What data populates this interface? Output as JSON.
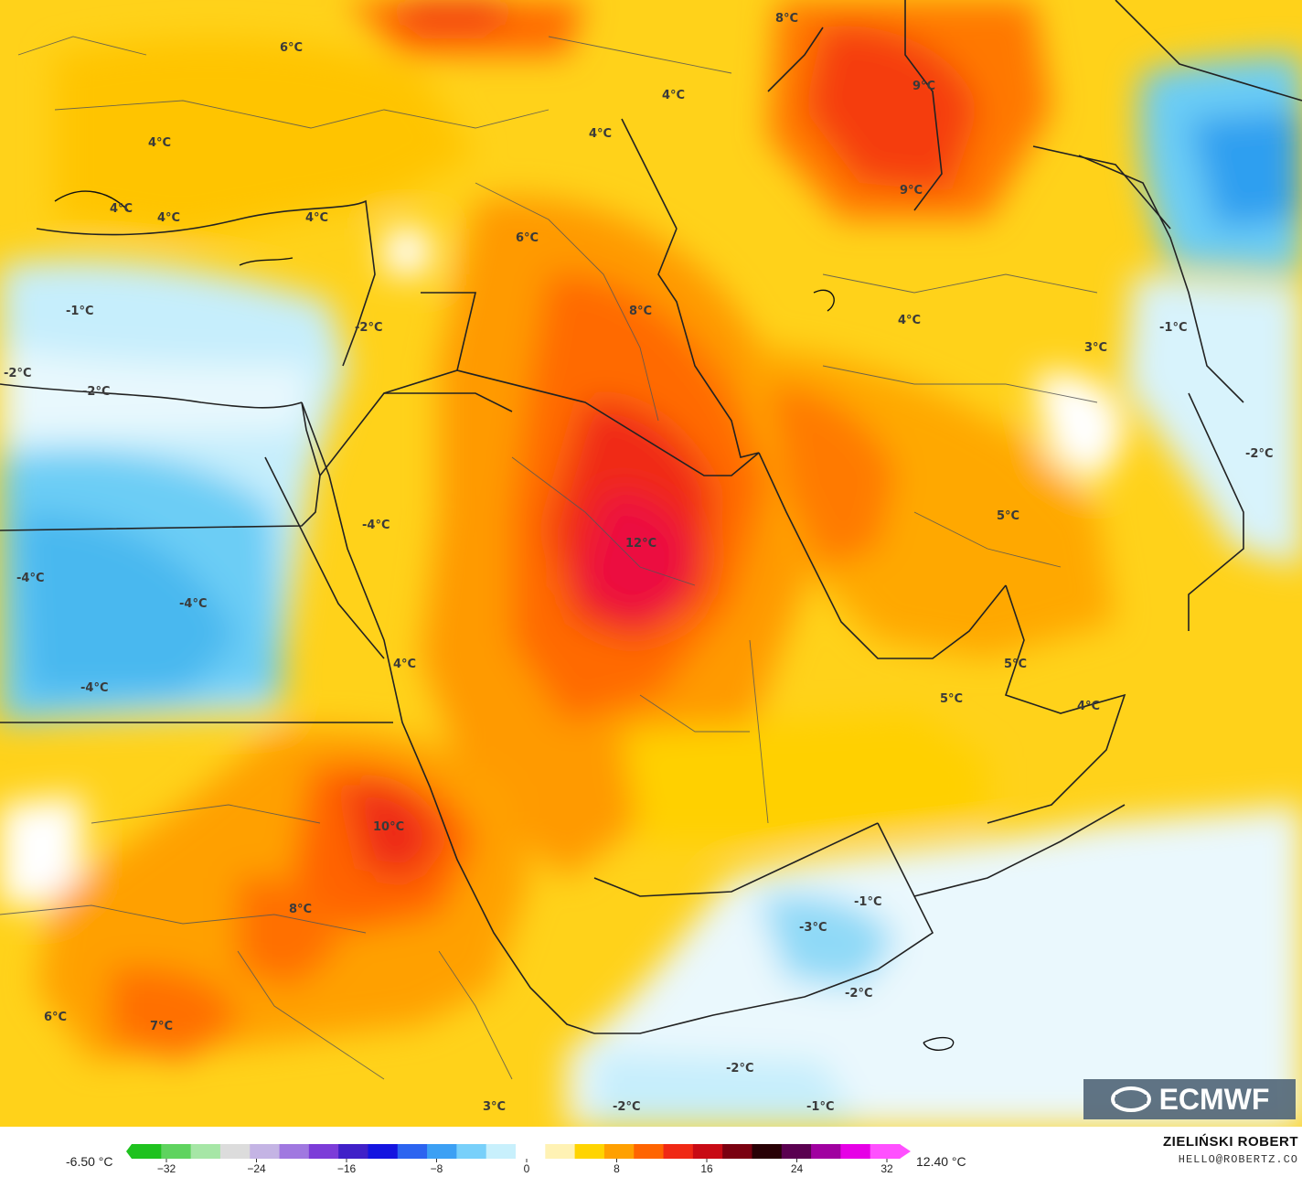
{
  "map": {
    "labels": [
      {
        "text": "6°C"
      },
      {
        "text": "8°C"
      },
      {
        "text": "9°C"
      },
      {
        "text": "9°C"
      },
      {
        "text": "4°C"
      },
      {
        "text": "4°C"
      },
      {
        "text": "4°C"
      },
      {
        "text": "4°C"
      },
      {
        "text": "4°C"
      },
      {
        "text": "4°C"
      },
      {
        "text": "6°C"
      },
      {
        "text": "8°C"
      },
      {
        "text": "-1°C"
      },
      {
        "text": "-2°C"
      },
      {
        "text": "-2°C"
      },
      {
        "text": "-2°C"
      },
      {
        "text": "4°C"
      },
      {
        "text": "3°C"
      },
      {
        "text": "-1°C"
      },
      {
        "text": "-2°C"
      },
      {
        "text": "-4°C"
      },
      {
        "text": "-4°C"
      },
      {
        "text": "-4°C"
      },
      {
        "text": "-4°C"
      },
      {
        "text": "12°C"
      },
      {
        "text": "5°C"
      },
      {
        "text": "5°C"
      },
      {
        "text": "5°C"
      },
      {
        "text": "4°C"
      },
      {
        "text": "4°C"
      },
      {
        "text": "10°C"
      },
      {
        "text": "8°C"
      },
      {
        "text": "6°C"
      },
      {
        "text": "7°C"
      },
      {
        "text": "-1°C"
      },
      {
        "text": "-3°C"
      },
      {
        "text": "-2°C"
      },
      {
        "text": "-2°C"
      },
      {
        "text": "-2°C"
      },
      {
        "text": "-1°C"
      },
      {
        "text": "3°C"
      }
    ]
  },
  "colorbar": {
    "min_value": "-6.50 °C",
    "max_value": "12.40 °C",
    "ticks": [
      "−32",
      "−24",
      "−16",
      "−8",
      "0",
      "8",
      "16",
      "24",
      "32"
    ],
    "colors": [
      "#1fc21f",
      "#5fd35f",
      "#a6e6a6",
      "#dcdcdc",
      "#c4b4e4",
      "#a078e0",
      "#7c3cd8",
      "#4020c8",
      "#1414e0",
      "#2c64f0",
      "#3ca0f4",
      "#78d0fa",
      "#c8f0fc",
      "#ffffff",
      "#fff2b4",
      "#ffd400",
      "#ffa000",
      "#ff6400",
      "#f02814",
      "#c80a14",
      "#7a0010",
      "#280005",
      "#5a0050",
      "#a000a0",
      "#e600e6",
      "#ff50ff"
    ]
  },
  "credit": {
    "name": "ZIELIŃSKI ROBERT",
    "email": "HELLO@ROBERTZ.CO"
  },
  "logo": {
    "text": "ECMWF"
  }
}
